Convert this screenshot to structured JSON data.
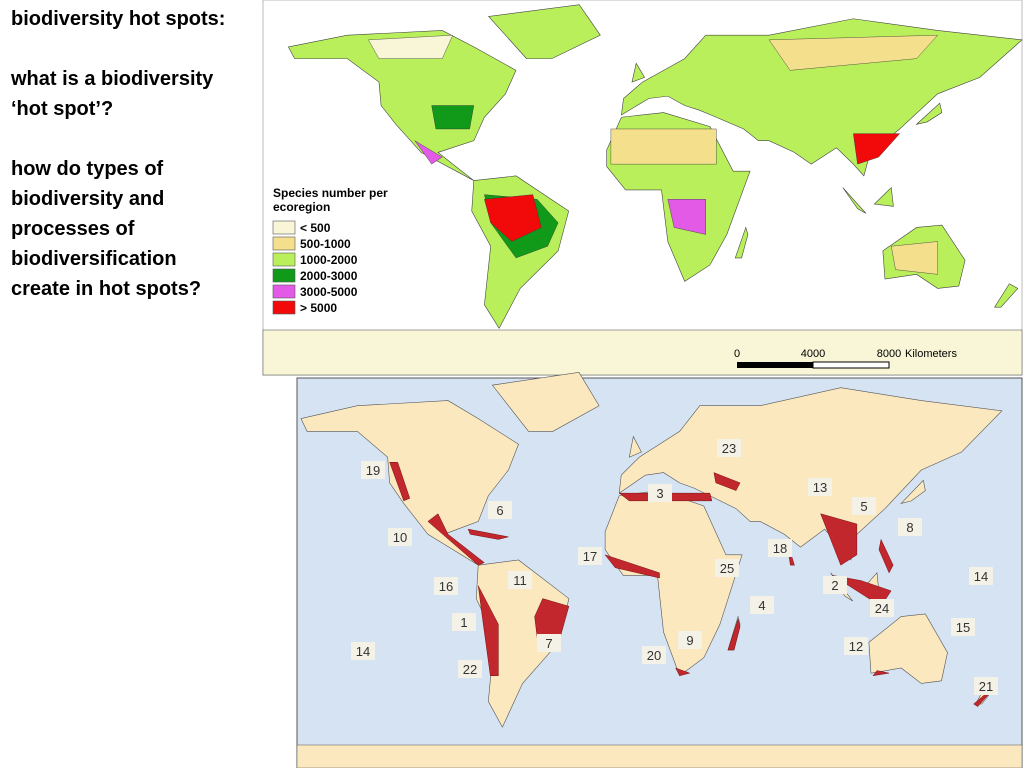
{
  "slide": {
    "heading": "biodiversity hot spots:",
    "question_1": "what is a biodiversity ‘hot spot’?",
    "question_2": "how do types of biodiversity and processes of biodiversification create in hot spots?"
  },
  "species_map": {
    "legend_title": "Species number per ecoregion",
    "legend": [
      {
        "label": "< 500",
        "color": "#f8f6d6"
      },
      {
        "label": "500-1000",
        "color": "#f3df8c"
      },
      {
        "label": "1000-2000",
        "color": "#b9ef5a"
      },
      {
        "label": "2000-3000",
        "color": "#119a1a"
      },
      {
        "label": "3000-5000",
        "color": "#e25ae6"
      },
      {
        "label": "> 5000",
        "color": "#f20a0a"
      }
    ],
    "scale_bar": {
      "ticks": [
        0,
        4000,
        8000
      ],
      "unit": "Kilometers"
    }
  },
  "hotspot_map": {
    "labels": [
      "19",
      "23",
      "13",
      "5",
      "3",
      "6",
      "8",
      "10",
      "18",
      "17",
      "25",
      "14",
      "11",
      "16",
      "2",
      "4",
      "24",
      "1",
      "7",
      "9",
      "15",
      "14",
      "12",
      "22",
      "20",
      "21"
    ]
  }
}
